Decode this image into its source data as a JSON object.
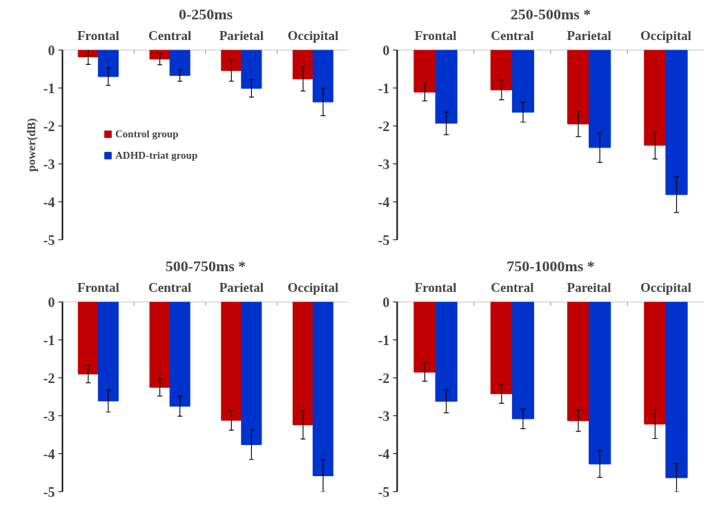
{
  "chart_data": [
    {
      "type": "bar",
      "title": "0-250ms",
      "ylabel": "power(dB)",
      "categories": [
        "Frontal",
        "Central",
        "Parietal",
        "Occipital"
      ],
      "ylim": [
        -5,
        0
      ],
      "yticks": [
        0,
        -1,
        -2,
        -3,
        -4,
        -5
      ],
      "grid": false,
      "legend": "left",
      "series": [
        {
          "name": "Control group",
          "color": "#c00000",
          "values": [
            -0.18,
            -0.24,
            -0.54,
            -0.76
          ],
          "errors": [
            0.2,
            0.15,
            0.28,
            0.32
          ]
        },
        {
          "name": "ADHD-triat group",
          "color": "#0033cc",
          "values": [
            -0.7,
            -0.67,
            -1.01,
            -1.37
          ],
          "errors": [
            0.23,
            0.15,
            0.23,
            0.36
          ]
        }
      ]
    },
    {
      "type": "bar",
      "title": "250-500ms *",
      "categories": [
        "Frontal",
        "Central",
        "Parietal",
        "Occipital"
      ],
      "ylim": [
        -5,
        0
      ],
      "yticks": [
        0,
        -1,
        -2,
        -3,
        -4,
        -5
      ],
      "grid": false,
      "series": [
        {
          "color": "#c00000",
          "values": [
            -1.11,
            -1.05,
            -1.95,
            -2.51
          ],
          "errors": [
            0.23,
            0.26,
            0.33,
            0.36
          ]
        },
        {
          "color": "#0033cc",
          "values": [
            -1.93,
            -1.64,
            -2.57,
            -3.81
          ],
          "errors": [
            0.3,
            0.26,
            0.39,
            0.47
          ]
        }
      ]
    },
    {
      "type": "bar",
      "title": "500-750ms *",
      "categories": [
        "Frontal",
        "Central",
        "Parietal",
        "Occipital"
      ],
      "ylim": [
        -5,
        0
      ],
      "yticks": [
        0,
        -1,
        -2,
        -3,
        -4,
        -5
      ],
      "grid": false,
      "series": [
        {
          "color": "#c00000",
          "values": [
            -1.9,
            -2.25,
            -3.12,
            -3.24
          ],
          "errors": [
            0.23,
            0.23,
            0.26,
            0.37
          ]
        },
        {
          "color": "#0033cc",
          "values": [
            -2.61,
            -2.75,
            -3.76,
            -4.58
          ],
          "errors": [
            0.29,
            0.26,
            0.39,
            0.42
          ]
        }
      ]
    },
    {
      "type": "bar",
      "title": "750-1000ms *",
      "categories": [
        "Frontal",
        "Central",
        "Pareital",
        "Occipital"
      ],
      "ylim": [
        -5,
        0
      ],
      "yticks": [
        0,
        -1,
        -2,
        -3,
        -4,
        -5
      ],
      "grid": false,
      "series": [
        {
          "color": "#c00000",
          "values": [
            -1.85,
            -2.42,
            -3.13,
            -3.22
          ],
          "errors": [
            0.24,
            0.25,
            0.28,
            0.38
          ]
        },
        {
          "color": "#0033cc",
          "values": [
            -2.62,
            -3.08,
            -4.27,
            -4.63
          ],
          "errors": [
            0.3,
            0.26,
            0.35,
            0.37
          ]
        }
      ]
    }
  ]
}
